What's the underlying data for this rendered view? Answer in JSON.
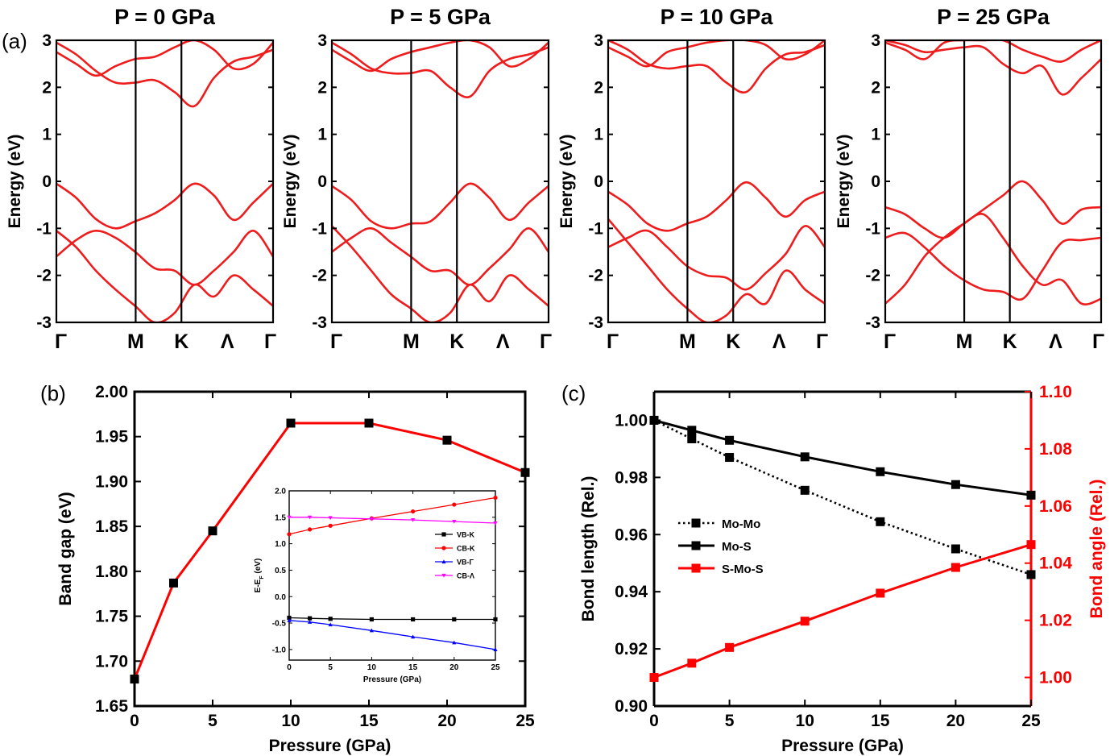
{
  "panel_labels": {
    "a": "(a)",
    "b": "(b)",
    "c": "(c)"
  },
  "chart_data": [
    {
      "id": "band_0",
      "type": "line",
      "title": "P = 0 GPa",
      "ylabel": "Energy (eV)",
      "ylim": [
        -3,
        3
      ],
      "yticks": [
        "-3",
        "-2",
        "-1",
        "0",
        "1",
        "2",
        "3"
      ],
      "kpoints": [
        "Γ",
        "M",
        "K",
        "Λ",
        "Γ"
      ],
      "kpos": [
        0,
        0.577,
        0.91,
        1.244,
        1.577
      ],
      "line_color": "#ee1c1c",
      "bands": [
        [
          -0.05,
          -0.35,
          -0.8,
          -1.0,
          -0.85,
          -0.68,
          -0.4,
          -0.05,
          -0.3,
          -0.82,
          -0.45,
          -0.05
        ],
        [
          -1.6,
          -1.25,
          -1.05,
          -1.2,
          -1.5,
          -1.85,
          -1.9,
          -2.2,
          -1.9,
          -1.5,
          -1.05,
          -1.6
        ],
        [
          -1.05,
          -1.4,
          -1.9,
          -2.3,
          -2.65,
          -3.0,
          -2.8,
          -2.2,
          -2.45,
          -2.0,
          -2.3,
          -2.65
        ],
        [
          2.95,
          2.7,
          2.35,
          2.1,
          2.1,
          2.15,
          1.9,
          1.6,
          2.2,
          2.55,
          2.65,
          2.8
        ],
        [
          2.75,
          2.5,
          2.25,
          2.45,
          2.6,
          2.65,
          2.85,
          3.0,
          2.8,
          2.4,
          2.5,
          2.95
        ]
      ]
    },
    {
      "id": "band_5",
      "type": "line",
      "title": "P = 5 GPa",
      "ylabel": "Energy (eV)",
      "ylim": [
        -3,
        3
      ],
      "yticks": [
        "-3",
        "-2",
        "-1",
        "0",
        "1",
        "2",
        "3"
      ],
      "kpoints": [
        "Γ",
        "M",
        "K",
        "Λ",
        "Γ"
      ],
      "kpos": [
        0,
        0.577,
        0.91,
        1.244,
        1.577
      ],
      "line_color": "#ee1c1c",
      "bands": [
        [
          -0.1,
          -0.4,
          -0.85,
          -1.0,
          -0.9,
          -0.85,
          -0.45,
          -0.05,
          -0.35,
          -0.82,
          -0.45,
          -0.1
        ],
        [
          -1.5,
          -1.2,
          -1.0,
          -1.3,
          -1.6,
          -1.9,
          -1.9,
          -2.2,
          -1.85,
          -1.45,
          -1.0,
          -1.5
        ],
        [
          -0.95,
          -1.4,
          -1.9,
          -2.4,
          -2.7,
          -3.0,
          -2.8,
          -2.2,
          -2.55,
          -2.0,
          -2.3,
          -2.65
        ],
        [
          2.95,
          2.7,
          2.4,
          2.3,
          2.3,
          2.35,
          2.0,
          1.8,
          2.35,
          2.6,
          2.7,
          2.85
        ],
        [
          2.8,
          2.55,
          2.35,
          2.6,
          2.75,
          2.85,
          2.95,
          3.0,
          2.85,
          2.45,
          2.6,
          2.95
        ]
      ]
    },
    {
      "id": "band_10",
      "type": "line",
      "title": "P = 10 GPa",
      "ylabel": "Energy (eV)",
      "ylim": [
        -3,
        3
      ],
      "yticks": [
        "-3",
        "-2",
        "-1",
        "0",
        "1",
        "2",
        "3"
      ],
      "kpoints": [
        "Γ",
        "M",
        "K",
        "Λ",
        "Γ"
      ],
      "kpos": [
        0,
        0.577,
        0.91,
        1.244,
        1.577
      ],
      "line_color": "#ee1c1c",
      "bands": [
        [
          -0.22,
          -0.5,
          -0.9,
          -1.05,
          -0.9,
          -0.75,
          -0.4,
          -0.02,
          -0.35,
          -0.75,
          -0.4,
          -0.22
        ],
        [
          -1.4,
          -1.2,
          -1.05,
          -1.4,
          -1.8,
          -2.0,
          -2.05,
          -2.3,
          -1.95,
          -1.55,
          -0.95,
          -1.4
        ],
        [
          -0.8,
          -1.3,
          -1.8,
          -2.3,
          -2.7,
          -3.0,
          -2.85,
          -2.4,
          -2.6,
          -1.9,
          -2.3,
          -2.6
        ],
        [
          3.0,
          2.8,
          2.5,
          2.4,
          2.45,
          2.45,
          2.1,
          1.9,
          2.4,
          2.7,
          2.75,
          2.9
        ],
        [
          2.85,
          2.65,
          2.45,
          2.75,
          2.85,
          2.95,
          3.0,
          3.0,
          2.9,
          2.6,
          2.7,
          3.0
        ]
      ]
    },
    {
      "id": "band_25",
      "type": "line",
      "title": "P = 25 GPa",
      "ylabel": "Energy (eV)",
      "ylim": [
        -3,
        3
      ],
      "yticks": [
        "-3",
        "-2",
        "-1",
        "0",
        "1",
        "2",
        "3"
      ],
      "kpoints": [
        "Γ",
        "M",
        "K",
        "Λ",
        "Γ"
      ],
      "kpos": [
        0,
        0.577,
        0.91,
        1.244,
        1.577
      ],
      "line_color": "#ee1c1c",
      "bands": [
        [
          -0.55,
          -0.7,
          -1.0,
          -1.2,
          -0.9,
          -0.6,
          -0.3,
          0.0,
          -0.4,
          -0.9,
          -0.6,
          -0.55
        ],
        [
          -1.2,
          -1.1,
          -1.4,
          -1.8,
          -2.1,
          -2.3,
          -2.35,
          -2.5,
          -1.9,
          -1.3,
          -1.25,
          -1.2
        ],
        [
          -2.6,
          -2.2,
          -1.6,
          -1.2,
          -0.9,
          -0.7,
          -1.2,
          -1.8,
          -2.2,
          -2.1,
          -2.6,
          -2.5
        ],
        [
          3.0,
          2.9,
          2.75,
          2.8,
          2.85,
          2.85,
          2.5,
          2.3,
          2.45,
          1.85,
          2.2,
          2.6
        ],
        [
          2.95,
          2.8,
          2.6,
          2.95,
          3.0,
          3.0,
          3.0,
          2.8,
          2.65,
          2.55,
          2.8,
          3.0
        ]
      ]
    },
    {
      "id": "gap",
      "type": "line",
      "xlabel": "Pressure (GPa)",
      "ylabel": "Band gap (eV)",
      "xlim": [
        0,
        25
      ],
      "ylim": [
        1.65,
        2.0
      ],
      "xticks": [
        0,
        5,
        10,
        15,
        20,
        25
      ],
      "yticks": [
        "1.65",
        "1.70",
        "1.75",
        "1.80",
        "1.85",
        "1.90",
        "1.95",
        "2.00"
      ],
      "x": [
        0,
        2.5,
        5,
        10,
        15,
        20,
        25
      ],
      "values": [
        1.68,
        1.787,
        1.845,
        1.965,
        1.965,
        1.946,
        1.91
      ],
      "line_color": "#ff0000",
      "marker_color": "#000000"
    },
    {
      "id": "gap_inset",
      "type": "line",
      "xlabel": "Pressure (GPa)",
      "ylabel_main": "E-E",
      "ylabel_sub": "F",
      "ylabel_tail": " (eV)",
      "xlim": [
        0,
        25
      ],
      "ylim": [
        -1.2,
        2.0
      ],
      "xticks": [
        "0",
        "5",
        "10",
        "15",
        "20",
        "25"
      ],
      "yticks": [
        "-1.0",
        "-0.5",
        "0.0",
        "0.5",
        "1.0",
        "1.5",
        "2.0"
      ],
      "x": [
        0,
        2.5,
        5,
        10,
        15,
        20,
        25
      ],
      "series": [
        {
          "name": "VB-K",
          "values": [
            -0.4,
            -0.41,
            -0.42,
            -0.43,
            -0.43,
            -0.43,
            -0.43
          ],
          "color": "#000000",
          "marker": "square"
        },
        {
          "name": "CB-K",
          "values": [
            1.18,
            1.27,
            1.34,
            1.48,
            1.61,
            1.74,
            1.87
          ],
          "color": "#ff0000",
          "marker": "circle"
        },
        {
          "name": "VB-Γ",
          "values": [
            -0.45,
            -0.48,
            -0.53,
            -0.64,
            -0.76,
            -0.87,
            -1.0
          ],
          "color": "#0000ff",
          "marker": "triangle-up"
        },
        {
          "name": "CB-Λ",
          "values": [
            1.5,
            1.5,
            1.49,
            1.47,
            1.45,
            1.42,
            1.39
          ],
          "color": "#ff00ff",
          "marker": "triangle-down"
        }
      ]
    },
    {
      "id": "bonds",
      "type": "line",
      "xlabel": "Pressure (GPa)",
      "ylabel": "Bond length (Rel.)",
      "y2label": "Bond angle (Rel.)",
      "xlim": [
        0,
        25
      ],
      "ylim": [
        0.9,
        1.01
      ],
      "y2lim": [
        0.99,
        1.1
      ],
      "xticks": [
        0,
        5,
        10,
        15,
        20,
        25
      ],
      "yticks": [
        "0.90",
        "0.92",
        "0.94",
        "0.96",
        "0.98",
        "1.00"
      ],
      "y2ticks": [
        "1.00",
        "1.02",
        "1.04",
        "1.06",
        "1.08",
        "1.10"
      ],
      "x": [
        0,
        2.5,
        5,
        10,
        15,
        20,
        25
      ],
      "series": [
        {
          "name": "Mo-Mo",
          "axis": "left",
          "values": [
            1.0,
            0.9935,
            0.987,
            0.9755,
            0.9645,
            0.955,
            0.946
          ],
          "color": "#000000",
          "style": "dotted"
        },
        {
          "name": "Mo-S",
          "axis": "left",
          "values": [
            1.0,
            0.9965,
            0.993,
            0.9872,
            0.982,
            0.9775,
            0.9738
          ],
          "color": "#000000",
          "style": "solid"
        },
        {
          "name": "S-Mo-S",
          "axis": "right",
          "values": [
            1.0,
            1.005,
            1.0105,
            1.0197,
            1.0295,
            1.0385,
            1.0465
          ],
          "color": "#ff0000",
          "style": "solid"
        }
      ]
    }
  ]
}
